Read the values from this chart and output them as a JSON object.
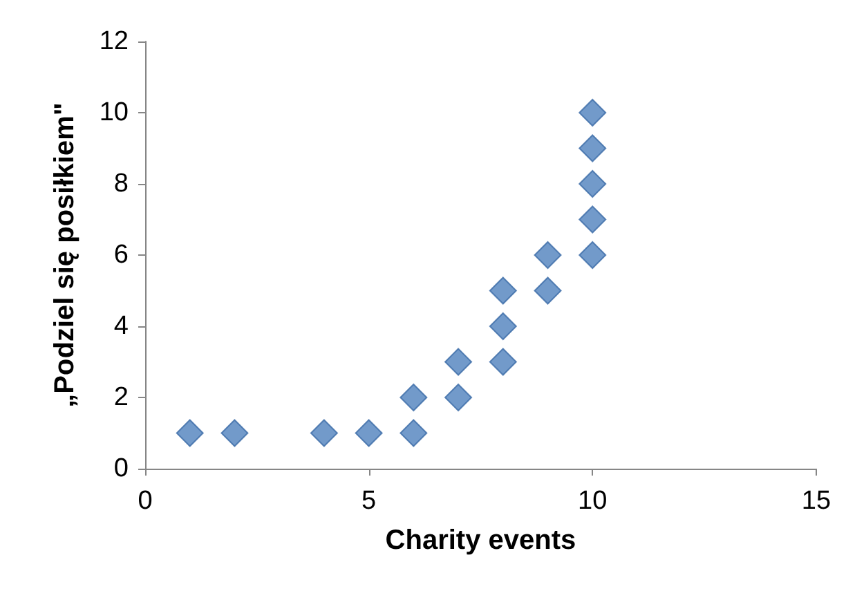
{
  "chart_data": {
    "type": "scatter",
    "xlabel": "Charity events",
    "ylabel": "„Podziel się posiłkiem\"",
    "x": [
      1,
      2,
      4,
      5,
      6,
      6,
      7,
      7,
      8,
      8,
      8,
      9,
      9,
      10,
      10,
      10,
      10,
      10
    ],
    "series": [
      {
        "color": "#4f81bd",
        "values": [
          1,
          1,
          1,
          1,
          1,
          2,
          2,
          3,
          3,
          4,
          5,
          5,
          6,
          6,
          7,
          8,
          9,
          10
        ]
      }
    ],
    "xlim": [
      0,
      15
    ],
    "xticks": [
      0,
      5,
      10,
      15
    ],
    "ylim": [
      0,
      12
    ],
    "yticks": [
      0,
      2,
      4,
      6,
      8,
      10,
      12
    ],
    "grid": false,
    "marker": "diamond"
  }
}
